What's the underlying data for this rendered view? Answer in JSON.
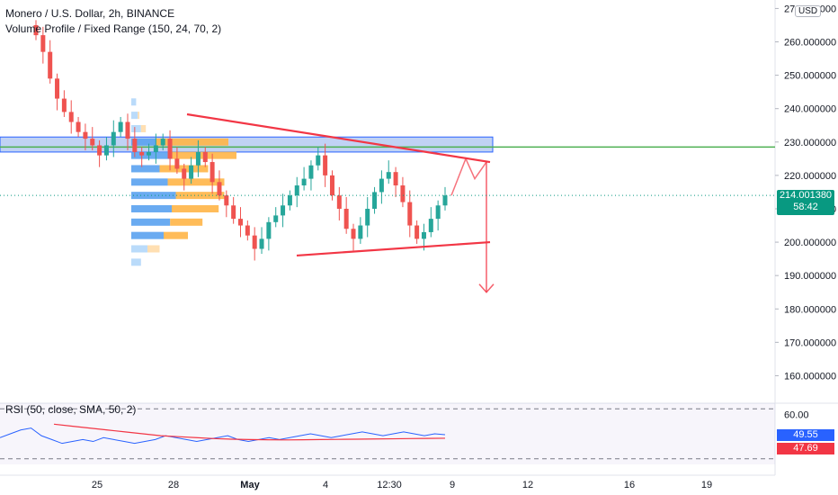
{
  "legend": {
    "symbol": "Monero / U.S. Dollar, 2h, BINANCE",
    "indicator": "Volume Profile / Fixed Range (150, 24, 70, 2)",
    "rsi": "RSI (50, close, SMA, 50, 2)"
  },
  "currency_badge": "USD",
  "last_price": "214.001380",
  "countdown": "58:42",
  "rsi_value": "49.55",
  "rsi_ma_value": "47.69",
  "colors": {
    "up": "#26a69a",
    "down": "#ef5350",
    "trend": "#f23645",
    "green_line": "#4caf50",
    "box_fill": "#4a7fe0",
    "price_tag": "#089981",
    "rsi_line": "#2962ff",
    "rsi_ma": "#f23645",
    "vp_blue": "#5aa2f0",
    "vp_orange": "#ffb547",
    "vp_blue_light": "#b3d7fa",
    "vp_orange_light": "#ffdcaa"
  },
  "chart_data": {
    "type": "candlestick",
    "price_axis": {
      "ticks": [
        "270.000000",
        "260.000000",
        "250.000000",
        "240.000000",
        "230.000000",
        "220.000000",
        "210.000000",
        "200.000000",
        "190.000000",
        "180.000000",
        "170.000000",
        "160.000000"
      ],
      "ylim": [
        155,
        272
      ]
    },
    "time_axis": {
      "ticks": [
        "25",
        "28",
        "May",
        "4",
        "12:30",
        "9",
        "12",
        "16",
        "19"
      ]
    },
    "rsi_axis": {
      "ticks": [
        "60.00"
      ]
    },
    "levels": {
      "horizontal_line": 228.5,
      "zone": [
        227,
        231.5
      ]
    },
    "annotations": {
      "upper_trendline": [
        [
          0,
          238
        ],
        [
          1,
          224
        ]
      ],
      "lower_trendline": [
        [
          0,
          196
        ],
        [
          1,
          200
        ]
      ],
      "projected_path": [
        214,
        225,
        219,
        224
      ],
      "down_arrow_target": 185
    },
    "close_path": [
      262,
      257,
      249,
      243,
      239,
      236,
      233,
      231,
      229,
      226,
      229,
      233,
      236,
      231,
      227,
      226,
      227,
      229,
      231,
      225,
      222,
      219,
      223,
      227,
      224,
      218,
      214,
      211,
      207,
      205,
      202,
      198,
      201,
      206,
      208,
      211,
      214,
      217,
      219,
      223,
      226,
      220,
      214,
      210,
      204,
      201,
      205,
      210,
      215,
      219,
      221,
      217,
      212,
      205,
      201,
      203,
      207,
      211,
      214
    ],
    "volume_profile": {
      "rows": [
        {
          "price": 242,
          "buy": 6,
          "sell": 0
        },
        {
          "price": 238,
          "buy": 8,
          "sell": 2
        },
        {
          "price": 234,
          "buy": 12,
          "sell": 6
        },
        {
          "price": 230,
          "buy": 30,
          "sell": 90
        },
        {
          "price": 226,
          "buy": 50,
          "sell": 80
        },
        {
          "price": 222,
          "buy": 35,
          "sell": 60
        },
        {
          "price": 218,
          "buy": 45,
          "sell": 70
        },
        {
          "price": 214,
          "buy": 55,
          "sell": 60
        },
        {
          "price": 210,
          "buy": 50,
          "sell": 58
        },
        {
          "price": 206,
          "buy": 48,
          "sell": 40
        },
        {
          "price": 202,
          "buy": 40,
          "sell": 30
        },
        {
          "price": 198,
          "buy": 20,
          "sell": 15
        },
        {
          "price": 194,
          "buy": 12,
          "sell": 0
        }
      ]
    },
    "rsi_series": [
      48,
      50,
      52,
      53,
      49,
      47,
      45,
      46,
      47,
      46,
      48,
      47,
      46,
      45,
      46,
      47,
      49,
      48,
      47,
      46,
      47,
      48,
      49,
      47,
      46,
      47,
      48,
      47,
      48,
      49,
      50,
      49,
      48,
      49,
      50,
      51,
      50,
      49,
      50,
      51,
      50,
      49,
      50,
      49.55
    ],
    "rsi_ma_series": [
      55,
      54,
      53,
      52,
      51,
      50,
      49,
      48.5,
      48,
      47.5,
      47.2,
      47,
      46.9,
      46.8,
      46.9,
      47,
      47.1,
      47.2,
      47.3,
      47.4,
      47.5,
      47.6,
      47.69
    ]
  }
}
